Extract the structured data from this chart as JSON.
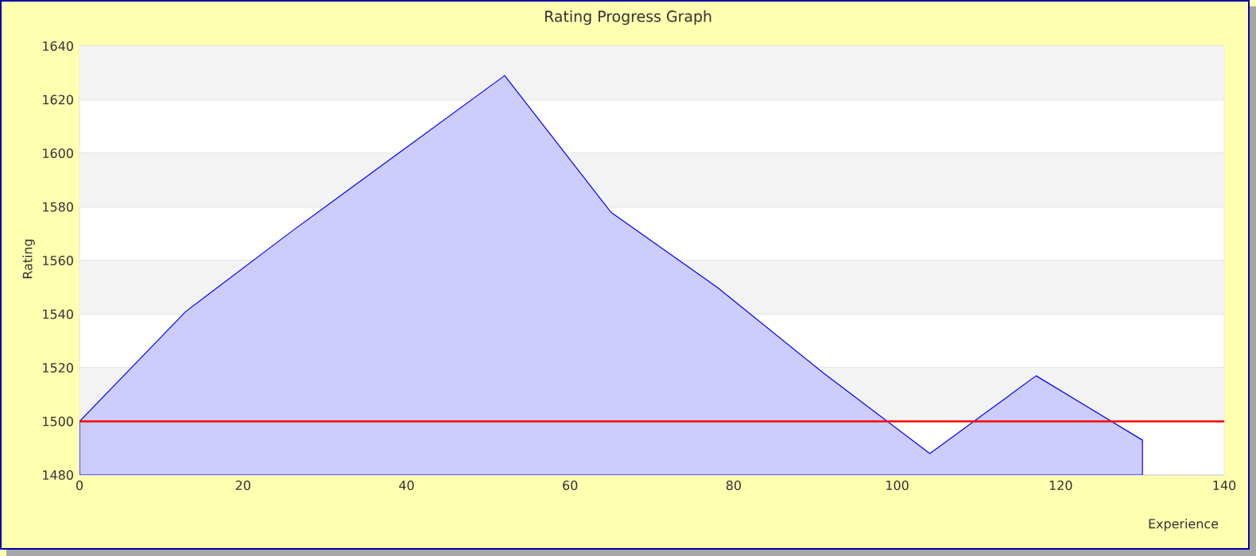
{
  "chart_data": {
    "type": "area",
    "title": "Rating Progress Graph",
    "xlabel": "Experience",
    "ylabel": "Rating",
    "x": [
      0,
      13,
      26,
      39,
      52,
      65,
      78,
      91,
      104,
      117,
      130
    ],
    "series": [
      {
        "color": "#ccccff",
        "values": [
          1500,
          1541,
          1571,
          1600,
          1629,
          1578,
          1550,
          1518,
          1488,
          1517,
          1493
        ]
      }
    ],
    "xlim": [
      0,
      140
    ],
    "xticks": [
      0,
      20,
      40,
      60,
      80,
      100,
      120,
      140
    ],
    "ylim": [
      1480,
      1640
    ],
    "yticks": [
      1480,
      1500,
      1520,
      1540,
      1560,
      1580,
      1600,
      1620,
      1640
    ],
    "ref_lines": [
      {
        "axis": "y",
        "value": 1500,
        "color": "#ff0000"
      }
    ],
    "grid": "y"
  }
}
